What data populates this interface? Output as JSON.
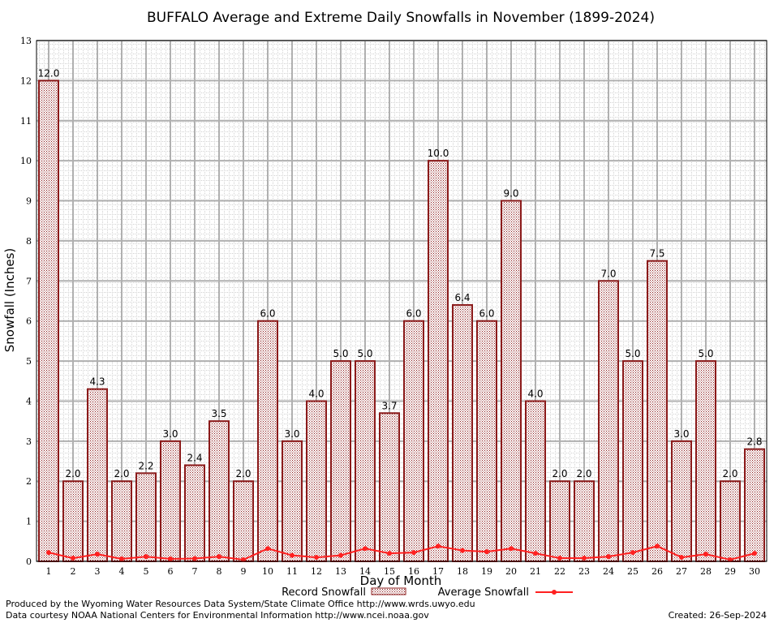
{
  "chart_data": {
    "type": "bar",
    "title": "BUFFALO Average and Extreme Daily Snowfalls in November (1899-2024)",
    "xlabel": "Day of Month",
    "ylabel": "Snowfall (Inches)",
    "ylim": [
      0,
      13
    ],
    "yticks": [
      "0",
      "1",
      "2",
      "3",
      "4",
      "5",
      "6",
      "7",
      "8",
      "9",
      "10",
      "11",
      "12",
      "13"
    ],
    "categories": [
      "1",
      "2",
      "3",
      "4",
      "5",
      "6",
      "7",
      "8",
      "9",
      "10",
      "11",
      "12",
      "13",
      "14",
      "15",
      "16",
      "17",
      "18",
      "19",
      "20",
      "21",
      "22",
      "23",
      "24",
      "25",
      "26",
      "27",
      "28",
      "29",
      "30"
    ],
    "series": [
      {
        "name": "Record Snowfall",
        "type": "bar",
        "color": "#b22222",
        "values": [
          12.0,
          2.0,
          4.3,
          2.0,
          2.2,
          3.0,
          2.4,
          3.5,
          2.0,
          6.0,
          3.0,
          4.0,
          5.0,
          5.0,
          3.7,
          6.0,
          10.0,
          6.4,
          6.0,
          9.0,
          4.0,
          2.0,
          2.0,
          7.0,
          5.0,
          7.5,
          3.0,
          5.0,
          2.0,
          2.8
        ],
        "labels": [
          "12.0",
          "2.0",
          "4.3",
          "2.0",
          "2.2",
          "3.0",
          "2.4",
          "3.5",
          "2.0",
          "6.0",
          "3.0",
          "4.0",
          "5.0",
          "5.0",
          "3.7",
          "6.0",
          "10.0",
          "6.4",
          "6.0",
          "9.0",
          "4.0",
          "2.0",
          "2.0",
          "7.0",
          "5.0",
          "7.5",
          "3.0",
          "5.0",
          "2.0",
          "2.8"
        ]
      },
      {
        "name": "Average Snowfall",
        "type": "line",
        "color": "#ff2020",
        "values": [
          0.22,
          0.08,
          0.18,
          0.06,
          0.12,
          0.06,
          0.07,
          0.12,
          0.04,
          0.32,
          0.15,
          0.1,
          0.15,
          0.32,
          0.2,
          0.22,
          0.38,
          0.27,
          0.24,
          0.32,
          0.2,
          0.08,
          0.08,
          0.12,
          0.22,
          0.38,
          0.1,
          0.18,
          0.04,
          0.2
        ]
      }
    ],
    "grid": true,
    "legend_position": "bottom"
  },
  "footer": {
    "produced_by": "Produced by the Wyoming Water Resources Data System/State Climate Office http://www.wrds.uwyo.edu",
    "courtesy": "Data courtesy NOAA National Centers for Environmental Information http://www.ncei.noaa.gov",
    "created": "Created:  26-Sep-2024"
  }
}
